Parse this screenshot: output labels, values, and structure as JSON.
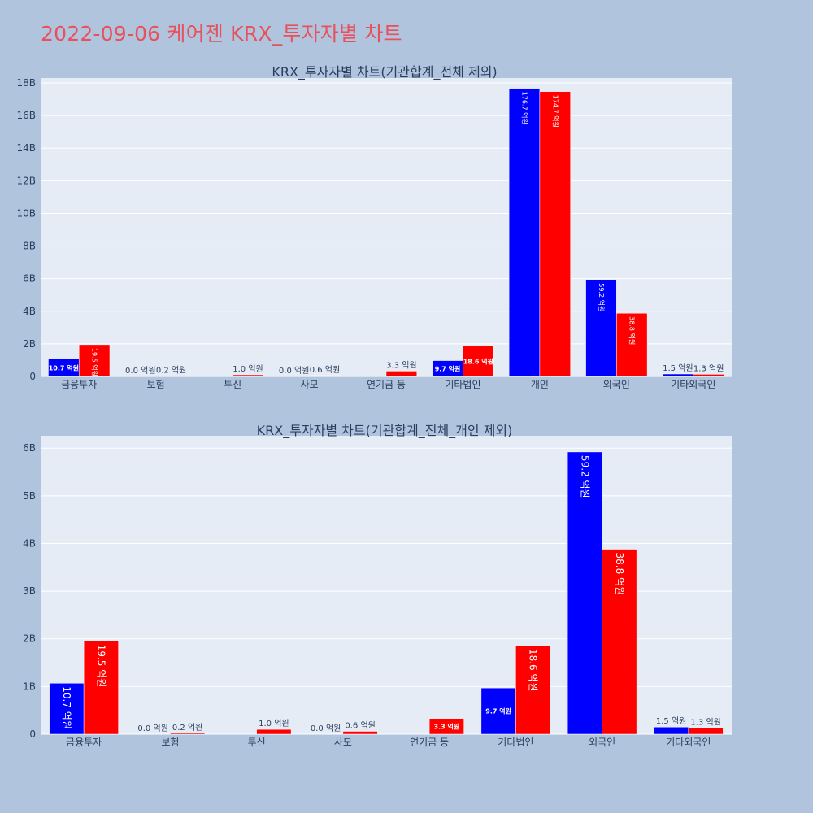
{
  "title": "2022-09-06 케어젠 KRX_투자자별 차트",
  "colors": {
    "page_bg": "#b0c4de",
    "plot_bg": "#e5ecf6",
    "buy": "#0000ff",
    "sell": "#ff0000",
    "title": "#e8505b"
  },
  "chart_data": [
    {
      "type": "bar",
      "title": "KRX_투자자별 차트(기관합계_전체 제외)",
      "categories": [
        "금융투자",
        "보험",
        "투신",
        "사모",
        "연기금 등",
        "기타법인",
        "개인",
        "외국인",
        "기타외국인"
      ],
      "series": [
        {
          "values": [
            1070000000,
            0,
            0,
            0,
            0,
            970000000,
            17670000000,
            5920000000,
            150000000
          ],
          "labels": [
            "10.7 억원",
            "0.0 억원",
            "",
            "0.0 억원",
            "",
            "9.7 억원",
            "176.7 억원",
            "59.2 억원",
            "1.5 억원"
          ]
        },
        {
          "values": [
            1950000000,
            20000000,
            100000000,
            60000000,
            330000000,
            1860000000,
            17470000000,
            3880000000,
            130000000
          ],
          "labels": [
            "19.5 억원",
            "0.2 억원",
            "1.0 억원",
            "0.6 억원",
            "3.3 억원",
            "18.6 억원",
            "174.7 억원",
            "38.8 억원",
            "1.3 억원"
          ]
        }
      ],
      "ylim": [
        0,
        18300000000
      ],
      "yticks": [
        0,
        2000000000,
        4000000000,
        6000000000,
        8000000000,
        10000000000,
        12000000000,
        14000000000,
        16000000000,
        18000000000
      ],
      "ytick_labels": [
        "0",
        "2B",
        "4B",
        "6B",
        "8B",
        "10B",
        "12B",
        "14B",
        "16B",
        "18B"
      ],
      "grid": true
    },
    {
      "type": "bar",
      "title": "KRX_투자자별 차트(기관합계_전체_개인 제외)",
      "categories": [
        "금융투자",
        "보험",
        "투신",
        "사모",
        "연기금 등",
        "기타법인",
        "외국인",
        "기타외국인"
      ],
      "series": [
        {
          "values": [
            1070000000,
            0,
            0,
            0,
            0,
            970000000,
            5920000000,
            150000000
          ],
          "labels": [
            "10.7 억원",
            "0.0 억원",
            "",
            "0.0 억원",
            "",
            "9.7 억원",
            "59.2 억원",
            "1.5 억원"
          ]
        },
        {
          "values": [
            1950000000,
            20000000,
            100000000,
            60000000,
            330000000,
            1860000000,
            3880000000,
            130000000
          ],
          "labels": [
            "19.5 억원",
            "0.2 억원",
            "1.0 억원",
            "0.6 억원",
            "3.3 억원",
            "18.6 억원",
            "38.8 억원",
            "1.3 억원"
          ]
        }
      ],
      "ylim": [
        0,
        6260000000
      ],
      "yticks": [
        0,
        1000000000,
        2000000000,
        3000000000,
        4000000000,
        5000000000,
        6000000000
      ],
      "ytick_labels": [
        "0",
        "1B",
        "2B",
        "3B",
        "4B",
        "5B",
        "6B"
      ],
      "grid": true
    }
  ]
}
